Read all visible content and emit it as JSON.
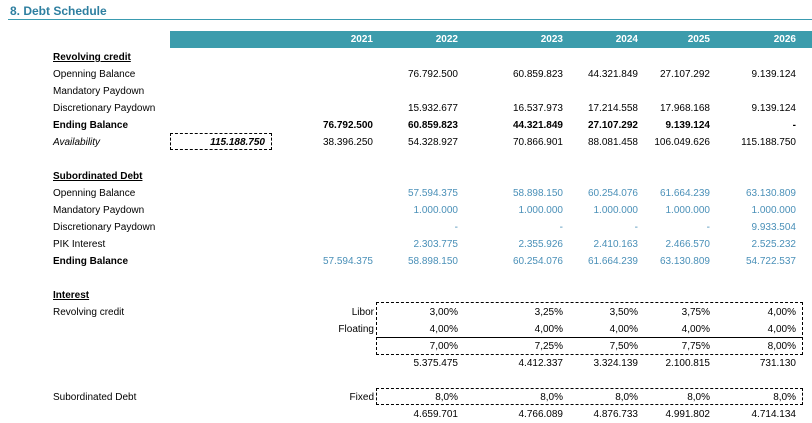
{
  "title": "8. Debt Schedule",
  "years": [
    "2021",
    "2022",
    "2023",
    "2024",
    "2025",
    "2026"
  ],
  "revolving": {
    "heading": "Revolving credit",
    "opening": {
      "label": "Openning Balance",
      "values": [
        "",
        "76.792.500",
        "60.859.823",
        "44.321.849",
        "27.107.292",
        "9.139.124"
      ]
    },
    "mandatory": {
      "label": "Mandatory Paydown",
      "values": [
        "",
        "",
        "",
        "",
        "",
        ""
      ]
    },
    "discretionary": {
      "label": "Discretionary Paydown",
      "values": [
        "",
        "15.932.677",
        "16.537.973",
        "17.214.558",
        "17.968.168",
        "9.139.124"
      ]
    },
    "ending": {
      "label": "Ending Balance",
      "values": [
        "76.792.500",
        "60.859.823",
        "44.321.849",
        "27.107.292",
        "9.139.124",
        "-"
      ]
    },
    "availability": {
      "label": "Availability",
      "limit": "115.188.750",
      "values": [
        "38.396.250",
        "54.328.927",
        "70.866.901",
        "88.081.458",
        "106.049.626",
        "115.188.750"
      ]
    }
  },
  "subordinated": {
    "heading": "Subordinated Debt",
    "opening": {
      "label": "Openning Balance",
      "values": [
        "",
        "57.594.375",
        "58.898.150",
        "60.254.076",
        "61.664.239",
        "63.130.809"
      ]
    },
    "mandatory": {
      "label": "Mandatory Paydown",
      "values": [
        "",
        "1.000.000",
        "1.000.000",
        "1.000.000",
        "1.000.000",
        "1.000.000"
      ]
    },
    "discretionary": {
      "label": "Discretionary Paydown",
      "values": [
        "",
        "-",
        "-",
        "-",
        "-",
        "9.933.504"
      ]
    },
    "pik": {
      "label": "PIK Interest",
      "values": [
        "",
        "2.303.775",
        "2.355.926",
        "2.410.163",
        "2.466.570",
        "2.525.232"
      ]
    },
    "ending": {
      "label": "Ending Balance",
      "values": [
        "57.594.375",
        "58.898.150",
        "60.254.076",
        "61.664.239",
        "63.130.809",
        "54.722.537"
      ]
    }
  },
  "interest": {
    "heading": "Interest",
    "revolving_label": "Revolving credit",
    "libor": {
      "label": "Libor",
      "values": [
        "3,00%",
        "3,25%",
        "3,50%",
        "3,75%",
        "4,00%"
      ]
    },
    "floating": {
      "label": "Floating",
      "values": [
        "4,00%",
        "4,00%",
        "4,00%",
        "4,00%",
        "4,00%"
      ]
    },
    "rate": {
      "values": [
        "7,00%",
        "7,25%",
        "7,50%",
        "7,75%",
        "8,00%"
      ]
    },
    "revolving_interest": {
      "values": [
        "5.375.475",
        "4.412.337",
        "3.324.139",
        "2.100.815",
        "731.130"
      ]
    },
    "sub_label": "Subordinated Debt",
    "fixed": {
      "label": "Fixed",
      "values": [
        "8,0%",
        "8,0%",
        "8,0%",
        "8,0%",
        "8,0%"
      ]
    },
    "sub_interest": {
      "values": [
        "4.659.701",
        "4.766.089",
        "4.876.733",
        "4.991.802",
        "4.714.134"
      ]
    }
  }
}
